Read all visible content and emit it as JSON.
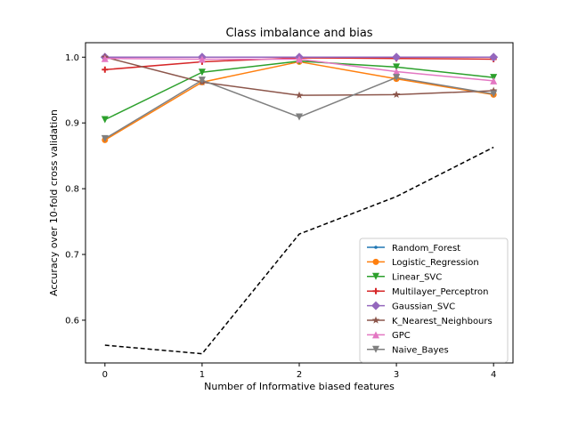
{
  "chart_data": {
    "type": "line",
    "title": "Class imbalance and bias",
    "xlabel": "Number of Informative biased features",
    "ylabel": "Accuracy over 10-fold cross validation",
    "x": [
      0,
      1,
      2,
      3,
      4
    ],
    "xlim": [
      -0.2,
      4.2
    ],
    "ylim": [
      0.535,
      1.022
    ],
    "xticks": [
      0,
      1,
      2,
      3,
      4
    ],
    "yticks": [
      0.6,
      0.7,
      0.8,
      0.9,
      1.0
    ],
    "xtick_labels": [
      "0",
      "1",
      "2",
      "3",
      "4"
    ],
    "ytick_labels": [
      "0.6",
      "0.7",
      "0.8",
      "0.9",
      "1.0"
    ],
    "grid": false,
    "legend_position": "lower-right",
    "series": [
      {
        "name": "Random_Forest",
        "color": "#1f77b4",
        "marker": "point",
        "values": [
          1.0,
          1.0,
          1.0,
          1.0,
          1.0
        ]
      },
      {
        "name": "Logistic_Regression",
        "color": "#ff7f0e",
        "marker": "circle",
        "values": [
          0.874,
          0.962,
          0.993,
          0.967,
          0.943
        ]
      },
      {
        "name": "Linear_SVC",
        "color": "#2ca02c",
        "marker": "triangle-down",
        "values": [
          0.905,
          0.977,
          0.994,
          0.985,
          0.969
        ]
      },
      {
        "name": "Multilayer_Perceptron",
        "color": "#d62728",
        "marker": "plus",
        "values": [
          0.981,
          0.993,
          0.999,
          0.998,
          0.997
        ]
      },
      {
        "name": "Gaussian_SVC",
        "color": "#9467bd",
        "marker": "diamond",
        "values": [
          1.0,
          1.0,
          1.0,
          1.0,
          1.0
        ]
      },
      {
        "name": "K_Nearest_Neighbours",
        "color": "#8c564b",
        "marker": "star",
        "values": [
          1.0,
          0.962,
          0.942,
          0.943,
          0.949
        ]
      },
      {
        "name": "GPC",
        "color": "#e377c2",
        "marker": "triangle-up",
        "values": [
          0.998,
          0.997,
          0.997,
          0.978,
          0.964
        ]
      },
      {
        "name": "Naive_Bayes",
        "color": "#7f7f7f",
        "marker": "triangle-down",
        "values": [
          0.876,
          0.965,
          0.909,
          0.969,
          0.944
        ]
      },
      {
        "color": "#000000",
        "marker": "none",
        "dashed": true,
        "values": [
          0.562,
          0.549,
          0.731,
          0.788,
          0.863
        ]
      }
    ]
  }
}
